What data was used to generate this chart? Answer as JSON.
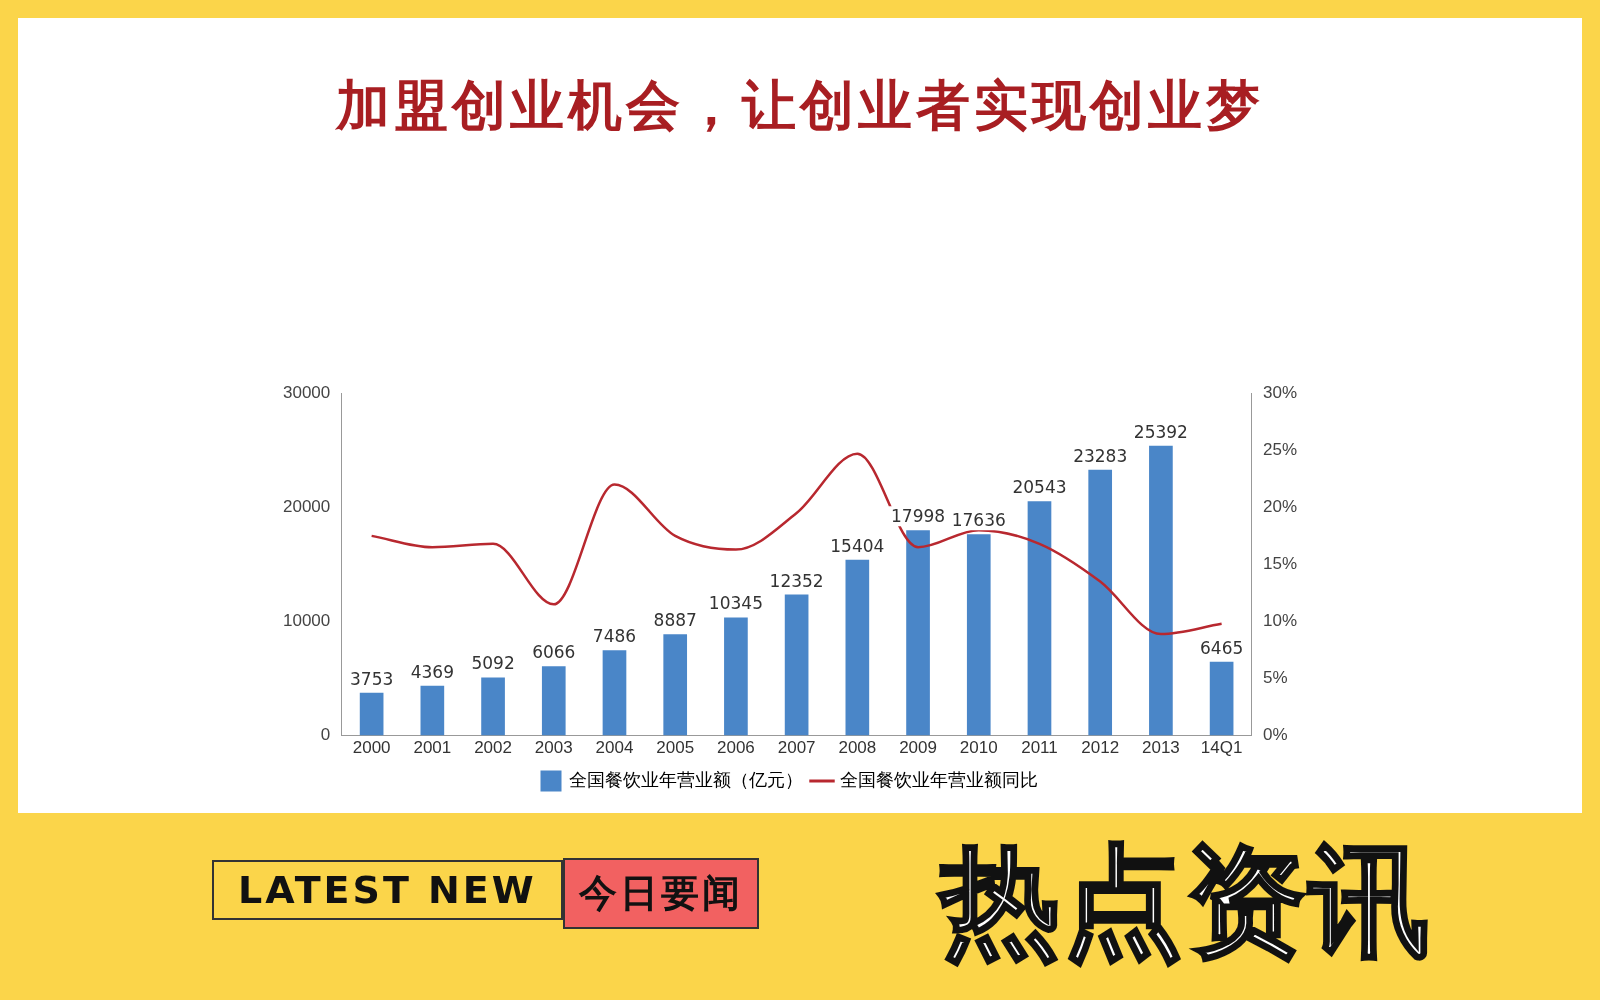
{
  "chart_data": {
    "type": "bar",
    "title": "加盟创业机会，让创业者实现创业梦",
    "categories": [
      "2000",
      "2001",
      "2002",
      "2003",
      "2004",
      "2005",
      "2006",
      "2007",
      "2008",
      "2009",
      "2010",
      "2011",
      "2012",
      "2013",
      "14Q1"
    ],
    "series": [
      {
        "name": "全国餐饮业年营业额（亿元）",
        "color": "#4a86c8",
        "values": [
          3753,
          4369,
          5092,
          6066,
          7486,
          8887,
          10345,
          12352,
          15404,
          17998,
          17636,
          20543,
          23283,
          25392,
          6465
        ],
        "value_labels": [
          "3753",
          "4369",
          "5092",
          "6066",
          "7486",
          "8887",
          "10345",
          "12352",
          "15404",
          "17998",
          "17636",
          "20543",
          "23283",
          "25392",
          "6465"
        ]
      },
      {
        "name": "全国餐饮业年营业额同比",
        "type": "line",
        "axis": "y2",
        "color": "#b8282f",
        "values": [
          17.5,
          16.5,
          16.8,
          11.5,
          22,
          17.5,
          16.3,
          19.5,
          24.7,
          16.5,
          18,
          16.8,
          13.5,
          8.9,
          9.8
        ]
      }
    ],
    "ylim": [
      0,
      30000
    ],
    "yticks": [
      0,
      10000,
      20000,
      30000
    ],
    "y2lim": [
      0,
      30
    ],
    "y2ticks": [
      {
        "value": 0,
        "label": "0%"
      },
      {
        "value": 5,
        "label": "5%"
      },
      {
        "value": 10,
        "label": "10%"
      },
      {
        "value": 15,
        "label": "15%"
      },
      {
        "value": 20,
        "label": "20%"
      },
      {
        "value": 25,
        "label": "25%"
      },
      {
        "value": 30,
        "label": "30%"
      }
    ],
    "grid": false,
    "legend": "bottom",
    "marker": "none",
    "line_style": "solid",
    "annotations": [
      "LATEST NEW",
      "今日要闻",
      "热点资讯"
    ]
  }
}
